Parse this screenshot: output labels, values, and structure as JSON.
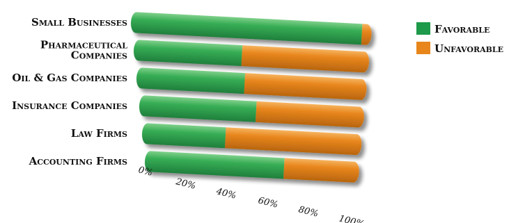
{
  "chart_data": {
    "type": "bar",
    "orientation": "horizontal",
    "stacked": true,
    "percent": true,
    "categories": [
      [
        "Small Businesses"
      ],
      [
        "Pharmaceutical",
        "Companies"
      ],
      [
        "Oil & Gas Companies"
      ],
      [
        "Insurance Companies"
      ],
      [
        "Law Firms"
      ],
      [
        "Accounting Firms"
      ]
    ],
    "series": [
      {
        "name": "Favorable",
        "color": "#1e9a4a",
        "values": [
          96,
          46,
          47,
          52,
          38,
          65
        ]
      },
      {
        "name": "Unfavorable",
        "color": "#e8861c",
        "values": [
          4,
          54,
          53,
          48,
          62,
          35
        ]
      }
    ],
    "x_ticks": [
      "0%",
      "20%",
      "40%",
      "60%",
      "80%",
      "100%"
    ],
    "xlim": [
      0,
      100
    ],
    "title": "",
    "xlabel": "",
    "ylabel": "",
    "legend_position": "right",
    "grid": false
  }
}
